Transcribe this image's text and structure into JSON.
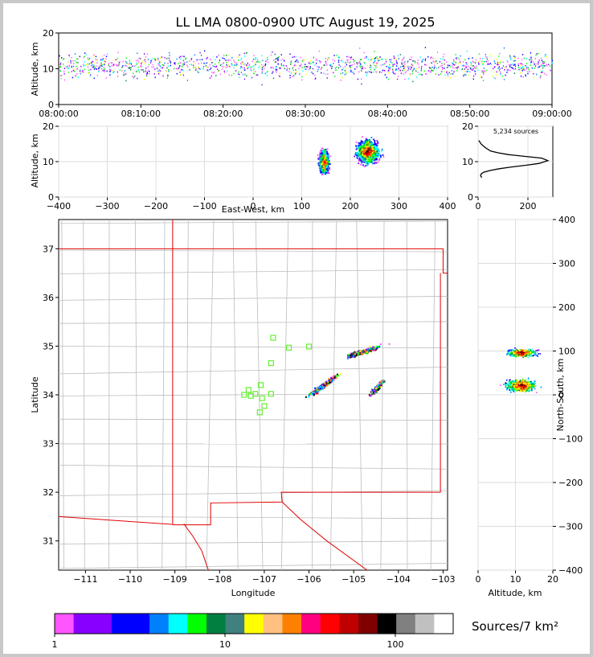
{
  "title": "LL LMA 0800-0900 UTC August 19, 2025",
  "colors": {
    "frame": "#c8c8c8",
    "grid": "#dddddd",
    "county": "#bdbdbd",
    "border": "#e00000",
    "station": "#66ee33",
    "profile": "#000000"
  },
  "chart_data": [
    {
      "id": "time-altitude",
      "type": "scatter",
      "ylabel": "Altitude, km",
      "ylim": [
        0,
        20
      ],
      "yticks": [
        "0",
        "10",
        "20"
      ],
      "xlim_minutes": [
        0,
        60
      ],
      "xticks": [
        "08:00:00",
        "08:10:00",
        "08:20:00",
        "08:30:00",
        "08:40:00",
        "08:50:00",
        "09:00:00"
      ],
      "description_of_data": "dense vertical streaks of sources between about 5 and 17 km throughout the hour"
    },
    {
      "id": "ew-altitude",
      "type": "scatter",
      "ylabel": "Altitude, km",
      "xlabel": "East-West, km",
      "xlim": [
        -400,
        400
      ],
      "ylim": [
        0,
        20
      ],
      "xticks": [
        "−400",
        "−300",
        "−200",
        "−100",
        "0",
        "100",
        "200",
        "300",
        "400"
      ],
      "yticks": [
        "0",
        "10",
        "20"
      ],
      "clusters": [
        {
          "x": 145,
          "y": 10,
          "sx": 9,
          "sy": 3
        },
        {
          "x": 235,
          "y": 13,
          "sx": 22,
          "sy": 3
        }
      ]
    },
    {
      "id": "altitude-histogram",
      "type": "line",
      "annotation": "5,234 sources",
      "xlim": [
        0,
        300
      ],
      "ylim": [
        0,
        20
      ],
      "xticks": [
        "0",
        "200"
      ],
      "yticks": [
        "0",
        "10",
        "20"
      ],
      "profile": [
        {
          "x": 15,
          "y": 5.5
        },
        {
          "x": 10,
          "y": 6
        },
        {
          "x": 12,
          "y": 6.5
        },
        {
          "x": 22,
          "y": 7
        },
        {
          "x": 48,
          "y": 7.5
        },
        {
          "x": 85,
          "y": 8
        },
        {
          "x": 135,
          "y": 8.5
        },
        {
          "x": 195,
          "y": 9
        },
        {
          "x": 245,
          "y": 9.5
        },
        {
          "x": 280,
          "y": 10.3
        },
        {
          "x": 255,
          "y": 11
        },
        {
          "x": 185,
          "y": 11.5
        },
        {
          "x": 120,
          "y": 12
        },
        {
          "x": 80,
          "y": 12.5
        },
        {
          "x": 50,
          "y": 13
        },
        {
          "x": 28,
          "y": 14
        },
        {
          "x": 12,
          "y": 15
        },
        {
          "x": 3,
          "y": 16
        }
      ]
    },
    {
      "id": "plan-view",
      "type": "scatter",
      "xlabel": "Longitude",
      "ylabel": "Latitude",
      "xlim": [
        -111.6,
        -102.9
      ],
      "ylim": [
        30.4,
        37.6
      ],
      "xticks": [
        "−111",
        "−110",
        "−109",
        "−108",
        "−107",
        "−106",
        "−105",
        "−104",
        "−103"
      ],
      "yticks": [
        "31",
        "32",
        "33",
        "34",
        "35",
        "36",
        "37"
      ],
      "stations": [
        {
          "lon": -106.8,
          "lat": 35.17
        },
        {
          "lon": -106.45,
          "lat": 34.97
        },
        {
          "lon": -106.0,
          "lat": 34.99
        },
        {
          "lon": -106.85,
          "lat": 34.65
        },
        {
          "lon": -107.08,
          "lat": 34.2
        },
        {
          "lon": -107.35,
          "lat": 34.1
        },
        {
          "lon": -107.45,
          "lat": 34.0
        },
        {
          "lon": -107.3,
          "lat": 33.98
        },
        {
          "lon": -107.05,
          "lat": 33.93
        },
        {
          "lon": -106.85,
          "lat": 34.02
        },
        {
          "lon": -107.0,
          "lat": 33.77
        },
        {
          "lon": -107.1,
          "lat": 33.64
        },
        {
          "lon": -107.2,
          "lat": 34.02
        }
      ]
    },
    {
      "id": "ns-altitude",
      "type": "scatter",
      "xlabel": "Altitude, km",
      "ylabel": "North-South, km",
      "xlim": [
        0,
        20
      ],
      "ylim": [
        -400,
        400
      ],
      "xticks": [
        "0",
        "10",
        "20"
      ],
      "yticks": [
        "−400",
        "−300",
        "−200",
        "−100",
        "0",
        "100",
        "200",
        "300",
        "400"
      ]
    },
    {
      "id": "colorbar",
      "type": "heatmap",
      "label": "Sources/7 km²",
      "ticks": [
        "1",
        "10",
        "100"
      ],
      "colors": [
        "#ff55ff",
        "#8800ff",
        "#8800ff",
        "#0000ff",
        "#0000ff",
        "#0080ff",
        "#00ffff",
        "#00ff00",
        "#008040",
        "#408080",
        "#ffff00",
        "#ffc080",
        "#ff8000",
        "#ff0080",
        "#ff0000",
        "#c00000",
        "#800000",
        "#000000",
        "#808080",
        "#c0c0c0",
        "#ffffff"
      ]
    }
  ]
}
